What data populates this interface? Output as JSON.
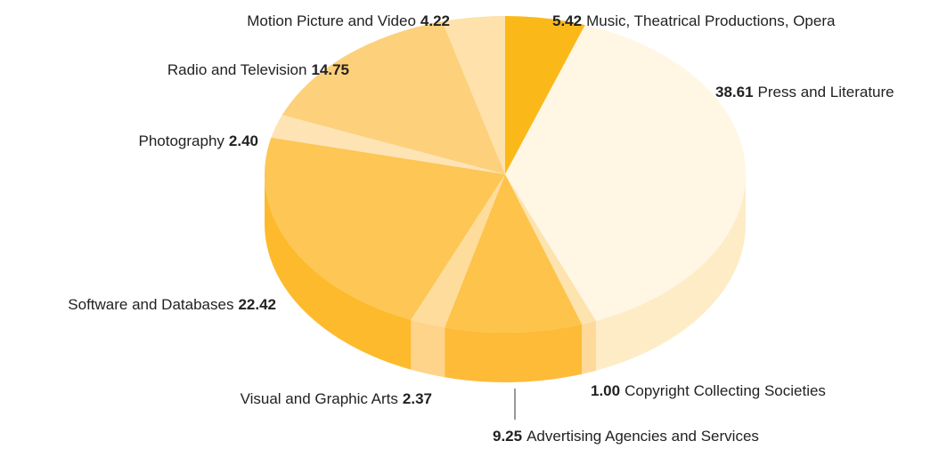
{
  "chart_data": {
    "type": "pie3d",
    "categories": [
      "Music, Theatrical Productions, Opera",
      "Press and Literature",
      "Copyright Collecting Societies",
      "Advertising Agencies and Services",
      "Visual and Graphic Arts",
      "Software and Databases",
      "Photography",
      "Radio and Television",
      "Motion Picture and Video"
    ],
    "values": [
      5.42,
      38.61,
      1.0,
      9.25,
      2.37,
      22.42,
      2.4,
      14.75,
      4.22
    ],
    "value_labels": [
      "5.42",
      "38.61",
      "1.00",
      "9.25",
      "2.37",
      "22.42",
      "2.40",
      "14.75",
      "4.22"
    ],
    "colors": [
      "#fbb919",
      "#fff6e4",
      "#fde3ad",
      "#fdc34a",
      "#fedc9c",
      "#fdc655",
      "#fee3b4",
      "#fdd07b",
      "#fee1ab"
    ],
    "side_colors": [
      "#f0a800",
      "#fdecc6",
      "#fed99a",
      "#fdbb38",
      "#fed38a",
      "#fdba2c",
      "#fed9a0",
      "#fcc461",
      "#fdd592"
    ]
  }
}
